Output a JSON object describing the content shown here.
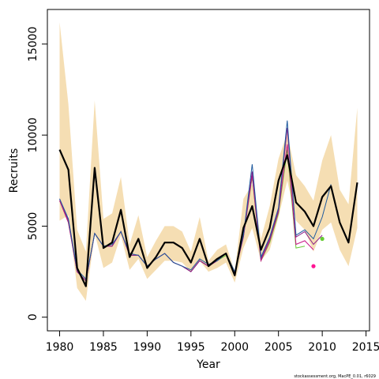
{
  "chart_data": {
    "type": "line",
    "title": "",
    "xlabel": "Year",
    "ylabel": "Recruits",
    "footnote": "stockassessment.org, MacPE_0.01, r6029",
    "xlim": [
      1978.6,
      2015.4
    ],
    "ylim": [
      -750,
      16900
    ],
    "xticks": [
      1980,
      1985,
      1990,
      1995,
      2000,
      2005,
      2010,
      2015
    ],
    "yticks": [
      0,
      5000,
      10000,
      15000
    ],
    "colors": {
      "band": "#f5deb3",
      "main": "#000000",
      "retro1": "#1f5a9e",
      "retro2": "#8a1f8a",
      "retro3": "#c71585",
      "retro4": "#66cc33",
      "retro5": "#ff1493"
    },
    "band": {
      "x": [
        1980,
        1981,
        1982,
        1983,
        1984,
        1985,
        1986,
        1987,
        1988,
        1989,
        1990,
        1991,
        1992,
        1993,
        1994,
        1995,
        1996,
        1997,
        1998,
        1999,
        2000,
        2001,
        2002,
        2003,
        2004,
        2005,
        2006,
        2007,
        2008,
        2009,
        2010,
        2011,
        2012,
        2013,
        2014
      ],
      "lower": [
        5300,
        5600,
        1600,
        900,
        4600,
        2700,
        3000,
        4500,
        2600,
        3200,
        2100,
        2600,
        3100,
        3100,
        3000,
        2500,
        3100,
        2500,
        2700,
        3000,
        1900,
        3800,
        4900,
        3100,
        3700,
        5500,
        7500,
        5300,
        4800,
        3600,
        4800,
        5200,
        3700,
        2800,
        4900
      ],
      "upper": [
        16200,
        11700,
        4800,
        3600,
        11900,
        5400,
        5700,
        7700,
        4000,
        5600,
        3300,
        4200,
        5000,
        5000,
        4700,
        3600,
        5500,
        3100,
        3700,
        4000,
        2500,
        6500,
        7300,
        4300,
        6100,
        8700,
        10100,
        7800,
        7200,
        6400,
        8600,
        10000,
        7000,
        6200,
        11500
      ]
    },
    "series": [
      {
        "x": [
          1980,
          1981,
          1982,
          1983,
          1984,
          1985,
          1986,
          1987,
          1988,
          1989,
          1990,
          1991,
          1992,
          1993,
          1994,
          1995,
          1996,
          1997,
          1998,
          1999,
          2000,
          2001,
          2002,
          2003,
          2004,
          2005,
          2006,
          2007,
          2008,
          2009,
          2010,
          2011,
          2012,
          2013,
          2014
        ],
        "values": [
          9200,
          8100,
          2700,
          1700,
          8200,
          3800,
          4100,
          5900,
          3300,
          4300,
          2700,
          3300,
          4100,
          4100,
          3800,
          3000,
          4300,
          2800,
          3200,
          3500,
          2300,
          4900,
          6100,
          3700,
          4900,
          7500,
          8900,
          6300,
          5800,
          5000,
          6600,
          7200,
          5200,
          4100,
          7400
        ]
      },
      {
        "x": [
          1980,
          1981,
          1982,
          1983,
          1984,
          1985,
          1986,
          1987,
          1988,
          1989,
          1990,
          1991,
          1992,
          1993,
          1994,
          1995,
          1996,
          1997,
          1998,
          1999,
          2000,
          2001,
          2002,
          2003,
          2004,
          2005,
          2006,
          2007,
          2008,
          2009,
          2010,
          2011
        ],
        "values": [
          6500,
          5400,
          2600,
          2100,
          4600,
          3900,
          4000,
          4700,
          3500,
          3400,
          2800,
          3200,
          3500,
          3000,
          2800,
          2600,
          3200,
          2900,
          3100,
          3500,
          2500,
          4500,
          8400,
          3300,
          4400,
          6000,
          10800,
          4500,
          4800,
          4300,
          5500,
          7300
        ]
      },
      {
        "x": [
          1980,
          1981,
          1982,
          1983,
          1984,
          1985,
          1986,
          1987,
          1988,
          1989,
          1990,
          1991,
          1992,
          1993,
          1994,
          1995,
          1996,
          1997,
          1998,
          1999,
          2000,
          2001,
          2002,
          2003,
          2004,
          2005,
          2006,
          2007,
          2008,
          2009,
          2010
        ],
        "values": [
          6500,
          5300,
          2500,
          2000,
          4600,
          3900,
          3900,
          4700,
          3400,
          3400,
          2800,
          3200,
          3500,
          3000,
          2800,
          2500,
          3100,
          2800,
          3100,
          3500,
          2400,
          4500,
          8000,
          3200,
          4300,
          5900,
          10400,
          4400,
          4700,
          4000,
          4500
        ]
      },
      {
        "x": [
          1980,
          1981,
          1982,
          1983,
          1984,
          1985,
          1986,
          1987,
          1988,
          1989,
          1990,
          1991,
          1992,
          1993,
          1994,
          1995,
          1996,
          1997,
          1998,
          1999,
          2000,
          2001,
          2002,
          2003,
          2004,
          2005,
          2006,
          2007,
          2008,
          2009
        ],
        "values": [
          6400,
          5200,
          2500,
          2000,
          4600,
          3900,
          3900,
          4700,
          3400,
          3400,
          2800,
          3200,
          3500,
          3000,
          2800,
          2500,
          3100,
          2800,
          3100,
          3500,
          2400,
          4400,
          7800,
          3100,
          4200,
          5800,
          9500,
          4000,
          4200,
          3700
        ]
      },
      {
        "x": [
          1980,
          1981,
          1982,
          1983,
          1984,
          1985,
          1986,
          1987,
          1988,
          1989,
          1990,
          1991,
          1992,
          1993,
          1994,
          1995,
          1996,
          1997,
          1998,
          1999,
          2000,
          2001,
          2002,
          2003,
          2004,
          2005,
          2006,
          2007,
          2008
        ],
        "values": [
          6400,
          5200,
          2500,
          2000,
          4600,
          3900,
          3900,
          4700,
          3400,
          3400,
          2800,
          3200,
          3500,
          3000,
          2800,
          2500,
          3100,
          2800,
          3100,
          3400,
          2400,
          4400,
          7700,
          3100,
          4100,
          5700,
          9200,
          3800,
          3900
        ]
      }
    ],
    "points": [
      {
        "x": 2010,
        "y": 4300,
        "series": 3
      },
      {
        "x": 2009,
        "y": 2800,
        "series": 4
      }
    ]
  }
}
